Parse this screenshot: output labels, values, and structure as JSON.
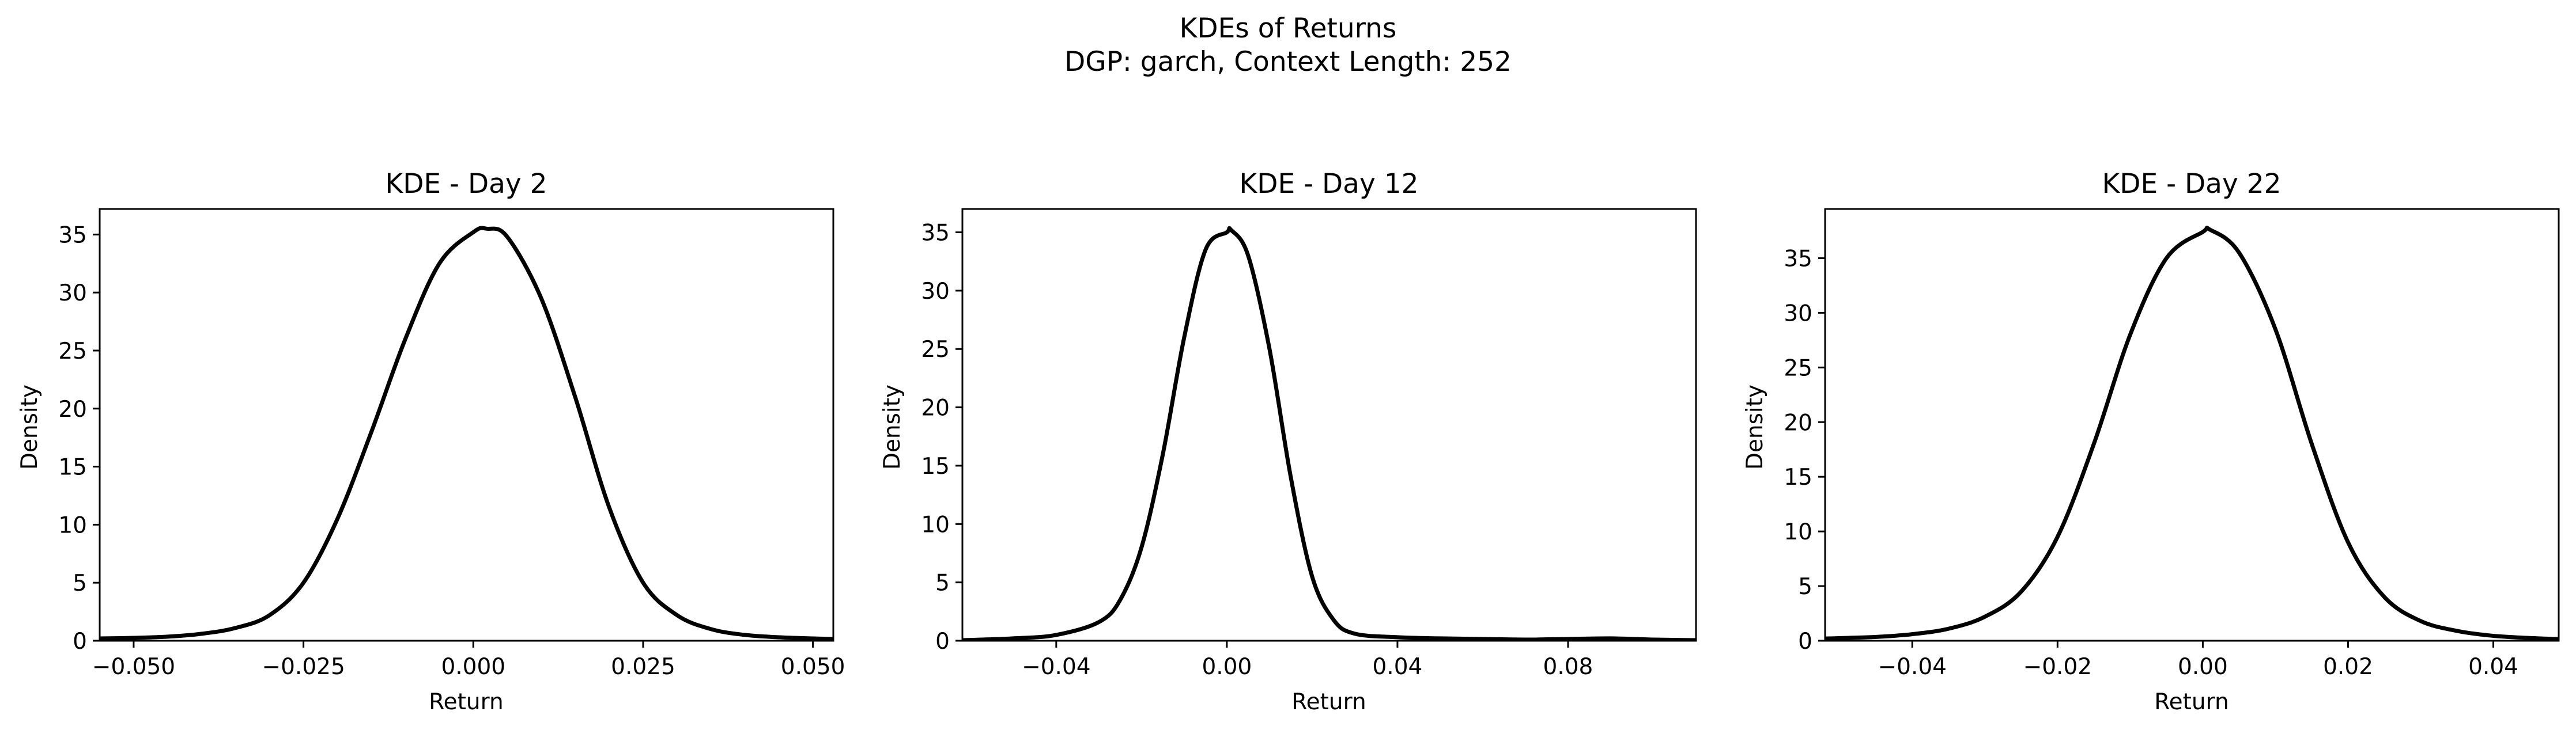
{
  "figure": {
    "suptitle_line1": "KDEs of Returns",
    "suptitle_line2": "DGP: garch, Context Length: 252"
  },
  "style": {
    "line_color": "#000000",
    "axis_color": "#000000",
    "background": "#ffffff"
  },
  "chart_data": [
    {
      "type": "line",
      "title": "KDE - Day 2",
      "xlabel": "Return",
      "ylabel": "Density",
      "xlim": [
        -0.055,
        0.053
      ],
      "ylim": [
        0,
        37.2
      ],
      "xticks": [
        -0.05,
        -0.025,
        0.0,
        0.025,
        0.05
      ],
      "xtick_labels": [
        "−0.050",
        "−0.025",
        "0.000",
        "0.025",
        "0.050"
      ],
      "yticks": [
        0,
        5,
        10,
        15,
        20,
        25,
        30,
        35
      ],
      "ytick_labels": [
        "0",
        "5",
        "10",
        "15",
        "20",
        "25",
        "30",
        "35"
      ],
      "grid": false,
      "series": [
        {
          "x": [
            -0.055,
            -0.05,
            -0.045,
            -0.04,
            -0.035,
            -0.03,
            -0.025,
            -0.02,
            -0.015,
            -0.01,
            -0.005,
            0.0,
            0.002,
            0.005,
            0.01,
            0.015,
            0.02,
            0.025,
            0.03,
            0.035,
            0.04,
            0.045,
            0.05,
            0.053
          ],
          "y": [
            0.2,
            0.25,
            0.35,
            0.6,
            1.1,
            2.2,
            5.0,
            10.5,
            18.0,
            26.0,
            32.5,
            35.2,
            35.5,
            34.8,
            29.5,
            21.0,
            11.5,
            5.0,
            2.2,
            1.0,
            0.5,
            0.3,
            0.2,
            0.15
          ]
        }
      ]
    },
    {
      "type": "line",
      "title": "KDE - Day 12",
      "xlabel": "Return",
      "ylabel": "Density",
      "xlim": [
        -0.062,
        0.11
      ],
      "ylim": [
        0,
        37.0
      ],
      "xticks": [
        -0.04,
        0.0,
        0.04,
        0.08
      ],
      "xtick_labels": [
        "−0.04",
        "0.00",
        "0.04",
        "0.08"
      ],
      "yticks": [
        0,
        5,
        10,
        15,
        20,
        25,
        30,
        35
      ],
      "ytick_labels": [
        "0",
        "5",
        "10",
        "15",
        "20",
        "25",
        "30",
        "35"
      ],
      "grid": false,
      "series": [
        {
          "x": [
            -0.062,
            -0.05,
            -0.04,
            -0.03,
            -0.025,
            -0.02,
            -0.015,
            -0.01,
            -0.005,
            0.0,
            0.001,
            0.005,
            0.01,
            0.015,
            0.02,
            0.025,
            0.03,
            0.04,
            0.05,
            0.06,
            0.07,
            0.08,
            0.09,
            0.1,
            0.11
          ],
          "y": [
            0.05,
            0.2,
            0.5,
            1.6,
            3.5,
            8.0,
            16.0,
            26.0,
            33.5,
            35.0,
            35.2,
            33.0,
            25.0,
            14.0,
            5.5,
            1.8,
            0.6,
            0.3,
            0.2,
            0.15,
            0.1,
            0.15,
            0.2,
            0.1,
            0.05
          ]
        }
      ]
    },
    {
      "type": "line",
      "title": "KDE - Day 22",
      "xlabel": "Return",
      "ylabel": "Density",
      "xlim": [
        -0.052,
        0.049
      ],
      "ylim": [
        0,
        39.5
      ],
      "xticks": [
        -0.04,
        -0.02,
        0.0,
        0.02,
        0.04
      ],
      "xtick_labels": [
        "−0.04",
        "−0.02",
        "0.00",
        "0.02",
        "0.04"
      ],
      "yticks": [
        0,
        5,
        10,
        15,
        20,
        25,
        30,
        35
      ],
      "ytick_labels": [
        "0",
        "5",
        "10",
        "15",
        "20",
        "25",
        "30",
        "35"
      ],
      "grid": false,
      "series": [
        {
          "x": [
            -0.052,
            -0.045,
            -0.04,
            -0.035,
            -0.03,
            -0.025,
            -0.02,
            -0.015,
            -0.01,
            -0.005,
            0.0,
            0.001,
            0.005,
            0.01,
            0.015,
            0.02,
            0.025,
            0.03,
            0.035,
            0.04,
            0.045,
            0.049
          ],
          "y": [
            0.2,
            0.35,
            0.6,
            1.1,
            2.2,
            4.5,
            9.5,
            18.0,
            28.0,
            35.0,
            37.4,
            37.6,
            35.5,
            28.5,
            18.0,
            9.0,
            4.0,
            1.8,
            0.9,
            0.45,
            0.25,
            0.15
          ]
        }
      ]
    }
  ]
}
